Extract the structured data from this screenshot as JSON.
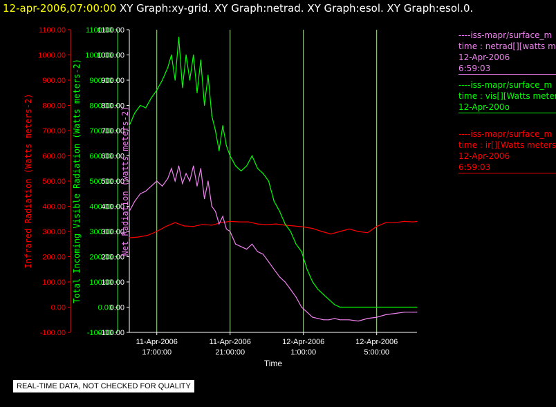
{
  "header": {
    "timestamp": "12-apr-2006,07:00:00",
    "titles": "XY Graph:xy-grid.  XY Graph:netrad.  XY Graph:esol.  XY Graph:esol.0."
  },
  "notice": "REAL-TIME DATA, NOT CHECKED FOR QUALITY",
  "colors": {
    "ir": "#ff0000",
    "vis": "#00ff00",
    "net": "#ee82ee",
    "axis": "#ffffff",
    "grid": "#b5e7a0"
  },
  "legend": [
    {
      "source": "----iss-mapr/surface_m",
      "var": "time : netrad[][watts m",
      "date": "12-Apr-2006",
      "time": "6:59:03",
      "color": "#ee82ee"
    },
    {
      "source": "----iss-mapr/surface_m",
      "var": "time : vis[][Watts meter",
      "date": "12-Apr-200o",
      "time": "",
      "color": "#00ff00"
    },
    {
      "source": "----iss-mapr/surface_m",
      "var": "time : ir[][Watts meters",
      "date": "12-Apr-2006",
      "time": "6:59:03",
      "color": "#ff0000"
    }
  ],
  "chart_data": {
    "type": "line",
    "xlabel": "Time",
    "x_ticks": [
      {
        "h": 17,
        "label1": "11-Apr-2006",
        "label2": "17:00:00"
      },
      {
        "h": 21,
        "label1": "11-Apr-2006",
        "label2": "21:00:00"
      },
      {
        "h": 25,
        "label1": "12-Apr-2006",
        "label2": "1:00:00"
      },
      {
        "h": 29,
        "label1": "12-Apr-2006",
        "label2": "5:00:00"
      }
    ],
    "xlim_hours": [
      15.5,
      31.2
    ],
    "ylim": [
      -100,
      1100
    ],
    "y_ticks": [
      "-100.00",
      "0.00",
      "100.00",
      "200.00",
      "300.00",
      "400.00",
      "500.00",
      "600.00",
      "700.00",
      "800.00",
      "900.00",
      "1000.00",
      "1100.00"
    ],
    "y_tick_values": [
      -100,
      0,
      100,
      200,
      300,
      400,
      500,
      600,
      700,
      800,
      900,
      1000,
      1100
    ],
    "axes": [
      {
        "id": "ir",
        "label": "Infrared Radiation (Watts meters-2)"
      },
      {
        "id": "vis",
        "label": "Total Incoming Visible Radiation (Watts meters-2)"
      },
      {
        "id": "net",
        "label": "Net Radiation (watts meters-2)"
      }
    ],
    "series": [
      {
        "name": "ir",
        "x": [
          15.5,
          16,
          16.5,
          17,
          17.5,
          18,
          18.5,
          19,
          19.5,
          20,
          20.5,
          21,
          21.5,
          22,
          22.5,
          23,
          23.5,
          24,
          24.5,
          25,
          25.5,
          26,
          26.5,
          27,
          27.5,
          28,
          28.5,
          29,
          29.5,
          30,
          30.5,
          31,
          31.2
        ],
        "y": [
          275,
          278,
          285,
          300,
          320,
          335,
          322,
          320,
          328,
          325,
          335,
          340,
          338,
          338,
          330,
          327,
          330,
          325,
          322,
          318,
          312,
          300,
          290,
          300,
          310,
          300,
          295,
          320,
          335,
          335,
          340,
          338,
          340
        ]
      },
      {
        "name": "vis",
        "x": [
          15.5,
          15.8,
          16.1,
          16.4,
          16.7,
          17,
          17.3,
          17.6,
          17.8,
          18,
          18.2,
          18.4,
          18.6,
          18.8,
          19,
          19.2,
          19.4,
          19.6,
          19.8,
          20,
          20.2,
          20.4,
          20.6,
          20.8,
          21,
          21.3,
          21.6,
          21.9,
          22.2,
          22.5,
          22.8,
          23.1,
          23.4,
          23.7,
          24,
          24.3,
          24.6,
          24.9,
          25.2,
          25.5,
          25.8,
          26.1,
          26.4,
          26.7,
          27,
          27.5,
          28,
          29,
          30,
          31,
          31.2
        ],
        "y": [
          720,
          770,
          800,
          790,
          830,
          860,
          900,
          950,
          1000,
          900,
          1070,
          870,
          1000,
          900,
          1000,
          850,
          980,
          800,
          920,
          760,
          700,
          620,
          720,
          640,
          600,
          560,
          540,
          560,
          600,
          550,
          530,
          500,
          420,
          380,
          330,
          300,
          250,
          220,
          150,
          100,
          70,
          50,
          30,
          10,
          0,
          0,
          0,
          0,
          0,
          0,
          0
        ]
      },
      {
        "name": "net",
        "x": [
          15.5,
          15.8,
          16.1,
          16.4,
          16.7,
          17,
          17.3,
          17.6,
          17.8,
          18,
          18.2,
          18.4,
          18.6,
          18.8,
          19,
          19.2,
          19.4,
          19.6,
          19.8,
          20,
          20.2,
          20.4,
          20.6,
          20.8,
          21,
          21.3,
          21.6,
          21.9,
          22.2,
          22.5,
          22.8,
          23.1,
          23.4,
          23.7,
          24,
          24.3,
          24.6,
          24.9,
          25.2,
          25.5,
          25.8,
          26.1,
          26.4,
          26.7,
          27,
          27.5,
          28,
          28.5,
          29,
          29.5,
          30,
          30.5,
          31,
          31.2
        ],
        "y": [
          380,
          420,
          450,
          460,
          480,
          500,
          480,
          510,
          550,
          500,
          560,
          490,
          530,
          500,
          560,
          480,
          550,
          430,
          500,
          400,
          380,
          330,
          360,
          310,
          300,
          250,
          240,
          230,
          250,
          220,
          210,
          180,
          150,
          120,
          100,
          70,
          40,
          0,
          -20,
          -40,
          -45,
          -50,
          -50,
          -45,
          -50,
          -50,
          -55,
          -45,
          -40,
          -30,
          -25,
          -20,
          -20,
          -20
        ]
      }
    ]
  }
}
